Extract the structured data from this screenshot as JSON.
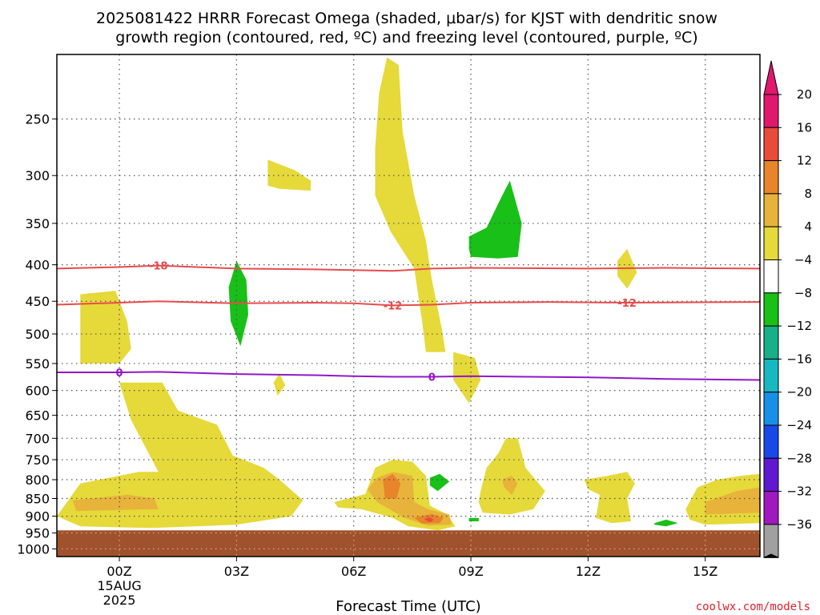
{
  "title": {
    "line1": "2025081422 HRRR Forecast Omega (shaded, μbar/s) for KJST with dendritic snow",
    "line2": "growth region (contoured, red, ºC) and freezing level (contoured, purple, ºC)"
  },
  "credit": "coolwx.com/models",
  "colors": {
    "up4": "#e6d93a",
    "up8": "#e8b33a",
    "up12": "#e8842a",
    "up16": "#e84b3a",
    "up20": "#e0186e",
    "dn4": "#18c018",
    "dn8": "#18b088",
    "dn12": "#18b8c0",
    "dn16": "#1890e8",
    "dn20": "#1848e8",
    "dn24": "#6018d0",
    "dn28": "#a018c0",
    "dn32": "#a0a0a0",
    "dn36": "#000000",
    "dendritic": "#e84b4b",
    "freezing": "#9018c8",
    "terrain": "#a0522d"
  },
  "chart_data": {
    "type": "heatmap",
    "xlabel": "Forecast Time (UTC)",
    "x_range_hours": [
      -1.6,
      16.4
    ],
    "x_ticks": [
      {
        "hour": 0,
        "label": "00Z",
        "sub1": "15AUG",
        "sub2": "2025"
      },
      {
        "hour": 3,
        "label": "03Z"
      },
      {
        "hour": 6,
        "label": "06Z"
      },
      {
        "hour": 9,
        "label": "09Z"
      },
      {
        "hour": 12,
        "label": "12Z"
      },
      {
        "hour": 15,
        "label": "15Z"
      }
    ],
    "y_ticks_hPa": [
      250,
      300,
      350,
      400,
      450,
      500,
      550,
      600,
      650,
      700,
      750,
      800,
      850,
      900,
      950,
      1000
    ],
    "y_range_hPa": [
      203,
      1025
    ],
    "y_scale": "log-pressure",
    "surface_hPa": 942,
    "colorbar": {
      "labels": [
        "20",
        "16",
        "12",
        "8",
        "4",
        "−4",
        "−8",
        "−12",
        "−16",
        "−20",
        "−24",
        "−28",
        "−32",
        "−36"
      ],
      "bins": [
        "up20",
        "up16",
        "up12",
        "up8",
        "up4",
        "white",
        "dn4",
        "dn8",
        "dn12",
        "dn16",
        "dn20",
        "dn24",
        "dn28",
        "dn32"
      ]
    },
    "contours": [
      {
        "name": "dendritic_-18",
        "label": "-18",
        "color": "dendritic",
        "points": [
          [
            -1.6,
            405
          ],
          [
            0,
            403
          ],
          [
            1,
            401
          ],
          [
            3,
            405
          ],
          [
            5,
            406
          ],
          [
            7,
            408
          ],
          [
            8,
            405
          ],
          [
            9,
            404
          ],
          [
            12,
            405
          ],
          [
            14,
            404
          ],
          [
            16.4,
            405
          ]
        ],
        "label_at": 1.0
      },
      {
        "name": "dendritic_-12",
        "label": "-12",
        "color": "dendritic",
        "points": [
          [
            -1.6,
            455
          ],
          [
            0,
            452
          ],
          [
            1,
            450
          ],
          [
            3,
            453
          ],
          [
            5,
            452
          ],
          [
            6,
            453
          ],
          [
            7,
            456
          ],
          [
            8,
            455
          ],
          [
            9,
            452
          ],
          [
            11,
            451
          ],
          [
            13,
            452
          ],
          [
            16.4,
            451
          ]
        ],
        "label_at": 7.0,
        "label_at2": 13.0
      },
      {
        "name": "freezing_0",
        "label": "0",
        "color": "freezing",
        "points": [
          [
            -1.6,
            566
          ],
          [
            0,
            566
          ],
          [
            1,
            565
          ],
          [
            3,
            569
          ],
          [
            5,
            571
          ],
          [
            6,
            573
          ],
          [
            7,
            574
          ],
          [
            8,
            574
          ],
          [
            9,
            573
          ],
          [
            12,
            575
          ],
          [
            14,
            578
          ],
          [
            16.4,
            580
          ]
        ],
        "label_at": 0.0,
        "label_at2": 8.0
      }
    ],
    "regions": [
      {
        "level": "up4",
        "pts": [
          [
            -1.0,
            440
          ],
          [
            -0.1,
            435
          ],
          [
            0.2,
            480
          ],
          [
            0.3,
            525
          ],
          [
            0.0,
            550
          ],
          [
            -1.0,
            550
          ]
        ]
      },
      {
        "level": "up4",
        "pts": [
          [
            3.8,
            285
          ],
          [
            4.5,
            295
          ],
          [
            4.9,
            305
          ],
          [
            4.9,
            315
          ],
          [
            4.1,
            313
          ],
          [
            3.8,
            310
          ]
        ]
      },
      {
        "level": "up4",
        "pts": [
          [
            3.95,
            585
          ],
          [
            4.1,
            568
          ],
          [
            4.25,
            590
          ],
          [
            4.05,
            610
          ]
        ]
      },
      {
        "level": "up4",
        "pts": [
          [
            6.85,
            205
          ],
          [
            7.15,
            210
          ],
          [
            7.25,
            260
          ],
          [
            7.55,
            320
          ],
          [
            7.85,
            370
          ],
          [
            8.0,
            420
          ],
          [
            8.25,
            490
          ],
          [
            8.35,
            530
          ],
          [
            7.85,
            530
          ],
          [
            7.75,
            480
          ],
          [
            7.55,
            405
          ],
          [
            6.95,
            360
          ],
          [
            6.55,
            320
          ],
          [
            6.55,
            275
          ],
          [
            6.65,
            230
          ]
        ]
      },
      {
        "level": "up4",
        "pts": [
          [
            8.55,
            530
          ],
          [
            9.1,
            540
          ],
          [
            9.25,
            580
          ],
          [
            8.95,
            625
          ],
          [
            8.55,
            580
          ]
        ]
      },
      {
        "level": "up4",
        "pts": [
          [
            12.75,
            395
          ],
          [
            13.0,
            380
          ],
          [
            13.25,
            410
          ],
          [
            13.0,
            432
          ],
          [
            12.75,
            415
          ]
        ]
      },
      {
        "level": "up4",
        "pts": [
          [
            0.0,
            585
          ],
          [
            1.1,
            585
          ],
          [
            1.5,
            640
          ],
          [
            2.5,
            670
          ],
          [
            2.9,
            740
          ],
          [
            3.7,
            770
          ],
          [
            4.1,
            800
          ],
          [
            4.7,
            855
          ],
          [
            4.4,
            900
          ],
          [
            3.0,
            925
          ],
          [
            0.8,
            935
          ],
          [
            -1.0,
            930
          ],
          [
            -1.6,
            900
          ],
          [
            -1.0,
            810
          ],
          [
            0.5,
            780
          ],
          [
            1.0,
            780
          ],
          [
            0.3,
            660
          ]
        ]
      },
      {
        "level": "up4",
        "pts": [
          [
            5.5,
            860
          ],
          [
            6.3,
            838
          ],
          [
            6.55,
            770
          ],
          [
            7.0,
            750
          ],
          [
            7.5,
            755
          ],
          [
            7.85,
            790
          ],
          [
            7.95,
            870
          ],
          [
            8.4,
            895
          ],
          [
            8.6,
            930
          ],
          [
            8.15,
            942
          ],
          [
            7.4,
            930
          ],
          [
            7.0,
            905
          ],
          [
            6.2,
            880
          ],
          [
            5.6,
            875
          ]
        ]
      },
      {
        "level": "up4",
        "pts": [
          [
            9.25,
            830
          ],
          [
            9.4,
            770
          ],
          [
            9.7,
            735
          ],
          [
            9.9,
            700
          ],
          [
            10.2,
            700
          ],
          [
            10.4,
            770
          ],
          [
            10.9,
            830
          ],
          [
            10.6,
            880
          ],
          [
            10.0,
            895
          ],
          [
            9.3,
            890
          ],
          [
            9.2,
            860
          ]
        ]
      },
      {
        "level": "up4",
        "pts": [
          [
            11.9,
            800
          ],
          [
            12.5,
            790
          ],
          [
            13.0,
            780
          ],
          [
            13.2,
            810
          ],
          [
            13.0,
            850
          ],
          [
            13.1,
            915
          ],
          [
            12.6,
            920
          ],
          [
            12.2,
            905
          ],
          [
            12.3,
            840
          ],
          [
            12.0,
            825
          ]
        ]
      },
      {
        "level": "up4",
        "pts": [
          [
            14.5,
            880
          ],
          [
            14.8,
            820
          ],
          [
            15.3,
            800
          ],
          [
            15.9,
            790
          ],
          [
            16.4,
            785
          ],
          [
            16.4,
            920
          ],
          [
            15.0,
            925
          ],
          [
            14.6,
            910
          ]
        ]
      },
      {
        "level": "dn4",
        "pts": [
          [
            3.0,
            395
          ],
          [
            3.25,
            420
          ],
          [
            3.3,
            470
          ],
          [
            3.1,
            520
          ],
          [
            2.85,
            480
          ],
          [
            2.8,
            430
          ]
        ]
      },
      {
        "level": "dn4",
        "pts": [
          [
            8.95,
            365
          ],
          [
            9.4,
            355
          ],
          [
            9.8,
            320
          ],
          [
            10.0,
            305
          ],
          [
            10.3,
            350
          ],
          [
            10.2,
            390
          ],
          [
            9.7,
            392
          ],
          [
            9.0,
            390
          ],
          [
            8.95,
            380
          ]
        ]
      },
      {
        "level": "dn4",
        "pts": [
          [
            7.95,
            795
          ],
          [
            8.2,
            785
          ],
          [
            8.45,
            805
          ],
          [
            8.15,
            830
          ],
          [
            7.95,
            815
          ]
        ]
      },
      {
        "level": "dn4",
        "pts": [
          [
            8.95,
            905
          ],
          [
            9.2,
            905
          ],
          [
            9.2,
            915
          ],
          [
            8.95,
            915
          ]
        ]
      },
      {
        "level": "dn4",
        "pts": [
          [
            13.7,
            920
          ],
          [
            14.0,
            910
          ],
          [
            14.3,
            920
          ],
          [
            14.0,
            930
          ],
          [
            13.7,
            925
          ]
        ]
      },
      {
        "level": "up8",
        "pts": [
          [
            -1.2,
            855
          ],
          [
            0.2,
            840
          ],
          [
            0.9,
            850
          ],
          [
            1.0,
            880
          ],
          [
            -1.1,
            885
          ]
        ]
      },
      {
        "level": "up8",
        "pts": [
          [
            6.35,
            825
          ],
          [
            6.6,
            795
          ],
          [
            7.0,
            780
          ],
          [
            7.5,
            790
          ],
          [
            7.55,
            860
          ],
          [
            7.9,
            880
          ],
          [
            8.45,
            895
          ],
          [
            8.5,
            925
          ],
          [
            7.9,
            928
          ],
          [
            7.3,
            905
          ],
          [
            6.6,
            860
          ]
        ]
      },
      {
        "level": "up8",
        "pts": [
          [
            9.8,
            800
          ],
          [
            10.05,
            790
          ],
          [
            10.2,
            810
          ],
          [
            10.05,
            840
          ],
          [
            9.85,
            820
          ]
        ]
      },
      {
        "level": "up8",
        "pts": [
          [
            15.0,
            860
          ],
          [
            15.8,
            830
          ],
          [
            16.4,
            820
          ],
          [
            16.4,
            890
          ],
          [
            15.0,
            895
          ]
        ]
      },
      {
        "level": "up12",
        "pts": [
          [
            6.75,
            800
          ],
          [
            7.0,
            785
          ],
          [
            7.2,
            810
          ],
          [
            7.1,
            850
          ],
          [
            6.8,
            850
          ]
        ]
      },
      {
        "level": "up12",
        "pts": [
          [
            7.55,
            905
          ],
          [
            8.0,
            893
          ],
          [
            8.3,
            905
          ],
          [
            8.2,
            920
          ],
          [
            7.75,
            922
          ]
        ]
      },
      {
        "level": "up16",
        "pts": [
          [
            7.8,
            908
          ],
          [
            7.95,
            903
          ],
          [
            8.05,
            911
          ],
          [
            7.95,
            918
          ]
        ]
      }
    ]
  }
}
